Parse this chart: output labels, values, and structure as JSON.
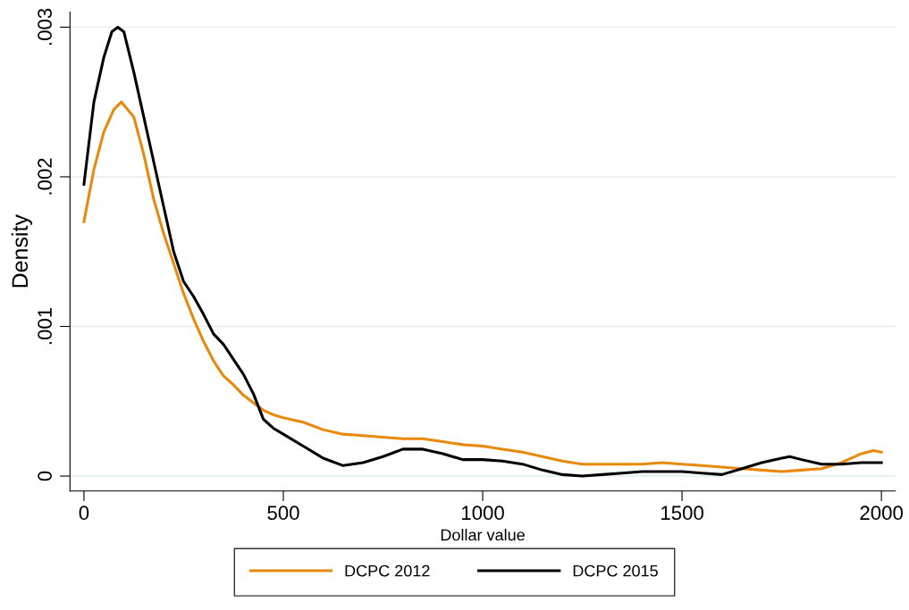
{
  "chart_data": {
    "type": "line",
    "xlabel": "Dollar value",
    "ylabel": "Density",
    "x": [
      0,
      25,
      50,
      75,
      94,
      125,
      150,
      175,
      200,
      225,
      250,
      275,
      300,
      325,
      350,
      375,
      400,
      425,
      450,
      475,
      500,
      550,
      600,
      650,
      700,
      750,
      800,
      850,
      900,
      950,
      1000,
      1050,
      1100,
      1150,
      1200,
      1250,
      1300,
      1350,
      1400,
      1450,
      1500,
      1550,
      1600,
      1650,
      1700,
      1750,
      1800,
      1850,
      1900,
      1950,
      1980,
      2000
    ],
    "series": [
      {
        "name": "DCPC 2012",
        "color": "#e8890c",
        "values": [
          0.0017,
          0.00205,
          0.0023,
          0.00245,
          0.0025,
          0.0024,
          0.00215,
          0.00185,
          0.00162,
          0.00142,
          0.00122,
          0.00105,
          0.0009,
          0.00077,
          0.00067,
          0.00061,
          0.00054,
          0.00049,
          0.00044,
          0.00041,
          0.00039,
          0.00036,
          0.00031,
          0.00028,
          0.00027,
          0.00026,
          0.00025,
          0.00025,
          0.00023,
          0.00021,
          0.0002,
          0.00018,
          0.00016,
          0.00013,
          0.0001,
          8e-05,
          8e-05,
          8e-05,
          8e-05,
          9e-05,
          8e-05,
          7e-05,
          6e-05,
          5e-05,
          4e-05,
          3e-05,
          4e-05,
          5e-05,
          9e-05,
          0.00015,
          0.00017,
          0.00016
        ]
      },
      {
        "name": "DCPC 2015",
        "color": "#000000",
        "x": [
          0,
          25,
          50,
          70,
          85,
          100,
          125,
          150,
          175,
          200,
          225,
          250,
          275,
          300,
          325,
          350,
          375,
          400,
          425,
          450,
          475,
          500,
          550,
          600,
          650,
          700,
          750,
          800,
          850,
          900,
          950,
          1000,
          1050,
          1100,
          1150,
          1200,
          1250,
          1300,
          1350,
          1400,
          1450,
          1500,
          1550,
          1600,
          1650,
          1700,
          1750,
          1770,
          1800,
          1850,
          1900,
          1950,
          2000
        ],
        "values": [
          0.00195,
          0.0025,
          0.0028,
          0.00297,
          0.003,
          0.00297,
          0.0027,
          0.0024,
          0.0021,
          0.0018,
          0.0015,
          0.0013,
          0.0012,
          0.00108,
          0.00095,
          0.00088,
          0.00078,
          0.00068,
          0.00055,
          0.00038,
          0.00032,
          0.00028,
          0.0002,
          0.00012,
          7e-05,
          9e-05,
          0.00013,
          0.00018,
          0.00018,
          0.00015,
          0.00011,
          0.00011,
          0.0001,
          8e-05,
          4e-05,
          1e-05,
          0.0,
          1e-05,
          2e-05,
          3e-05,
          3e-05,
          3e-05,
          2e-05,
          1e-05,
          5e-05,
          9e-05,
          0.00012,
          0.00013,
          0.00011,
          8e-05,
          8e-05,
          9e-05,
          9e-05
        ]
      }
    ],
    "xlim": [
      -35,
      2035
    ],
    "xticks": [
      0,
      500,
      1000,
      1500,
      2000
    ],
    "ylim": [
      -0.0001,
      0.0031
    ],
    "yticks": [
      {
        "value": 0,
        "label": "0"
      },
      {
        "value": 0.001,
        "label": ".001"
      },
      {
        "value": 0.002,
        "label": ".002"
      },
      {
        "value": 0.003,
        "label": ".003"
      }
    ],
    "grid": "y",
    "legend": "bottom",
    "line_style": "solid"
  }
}
